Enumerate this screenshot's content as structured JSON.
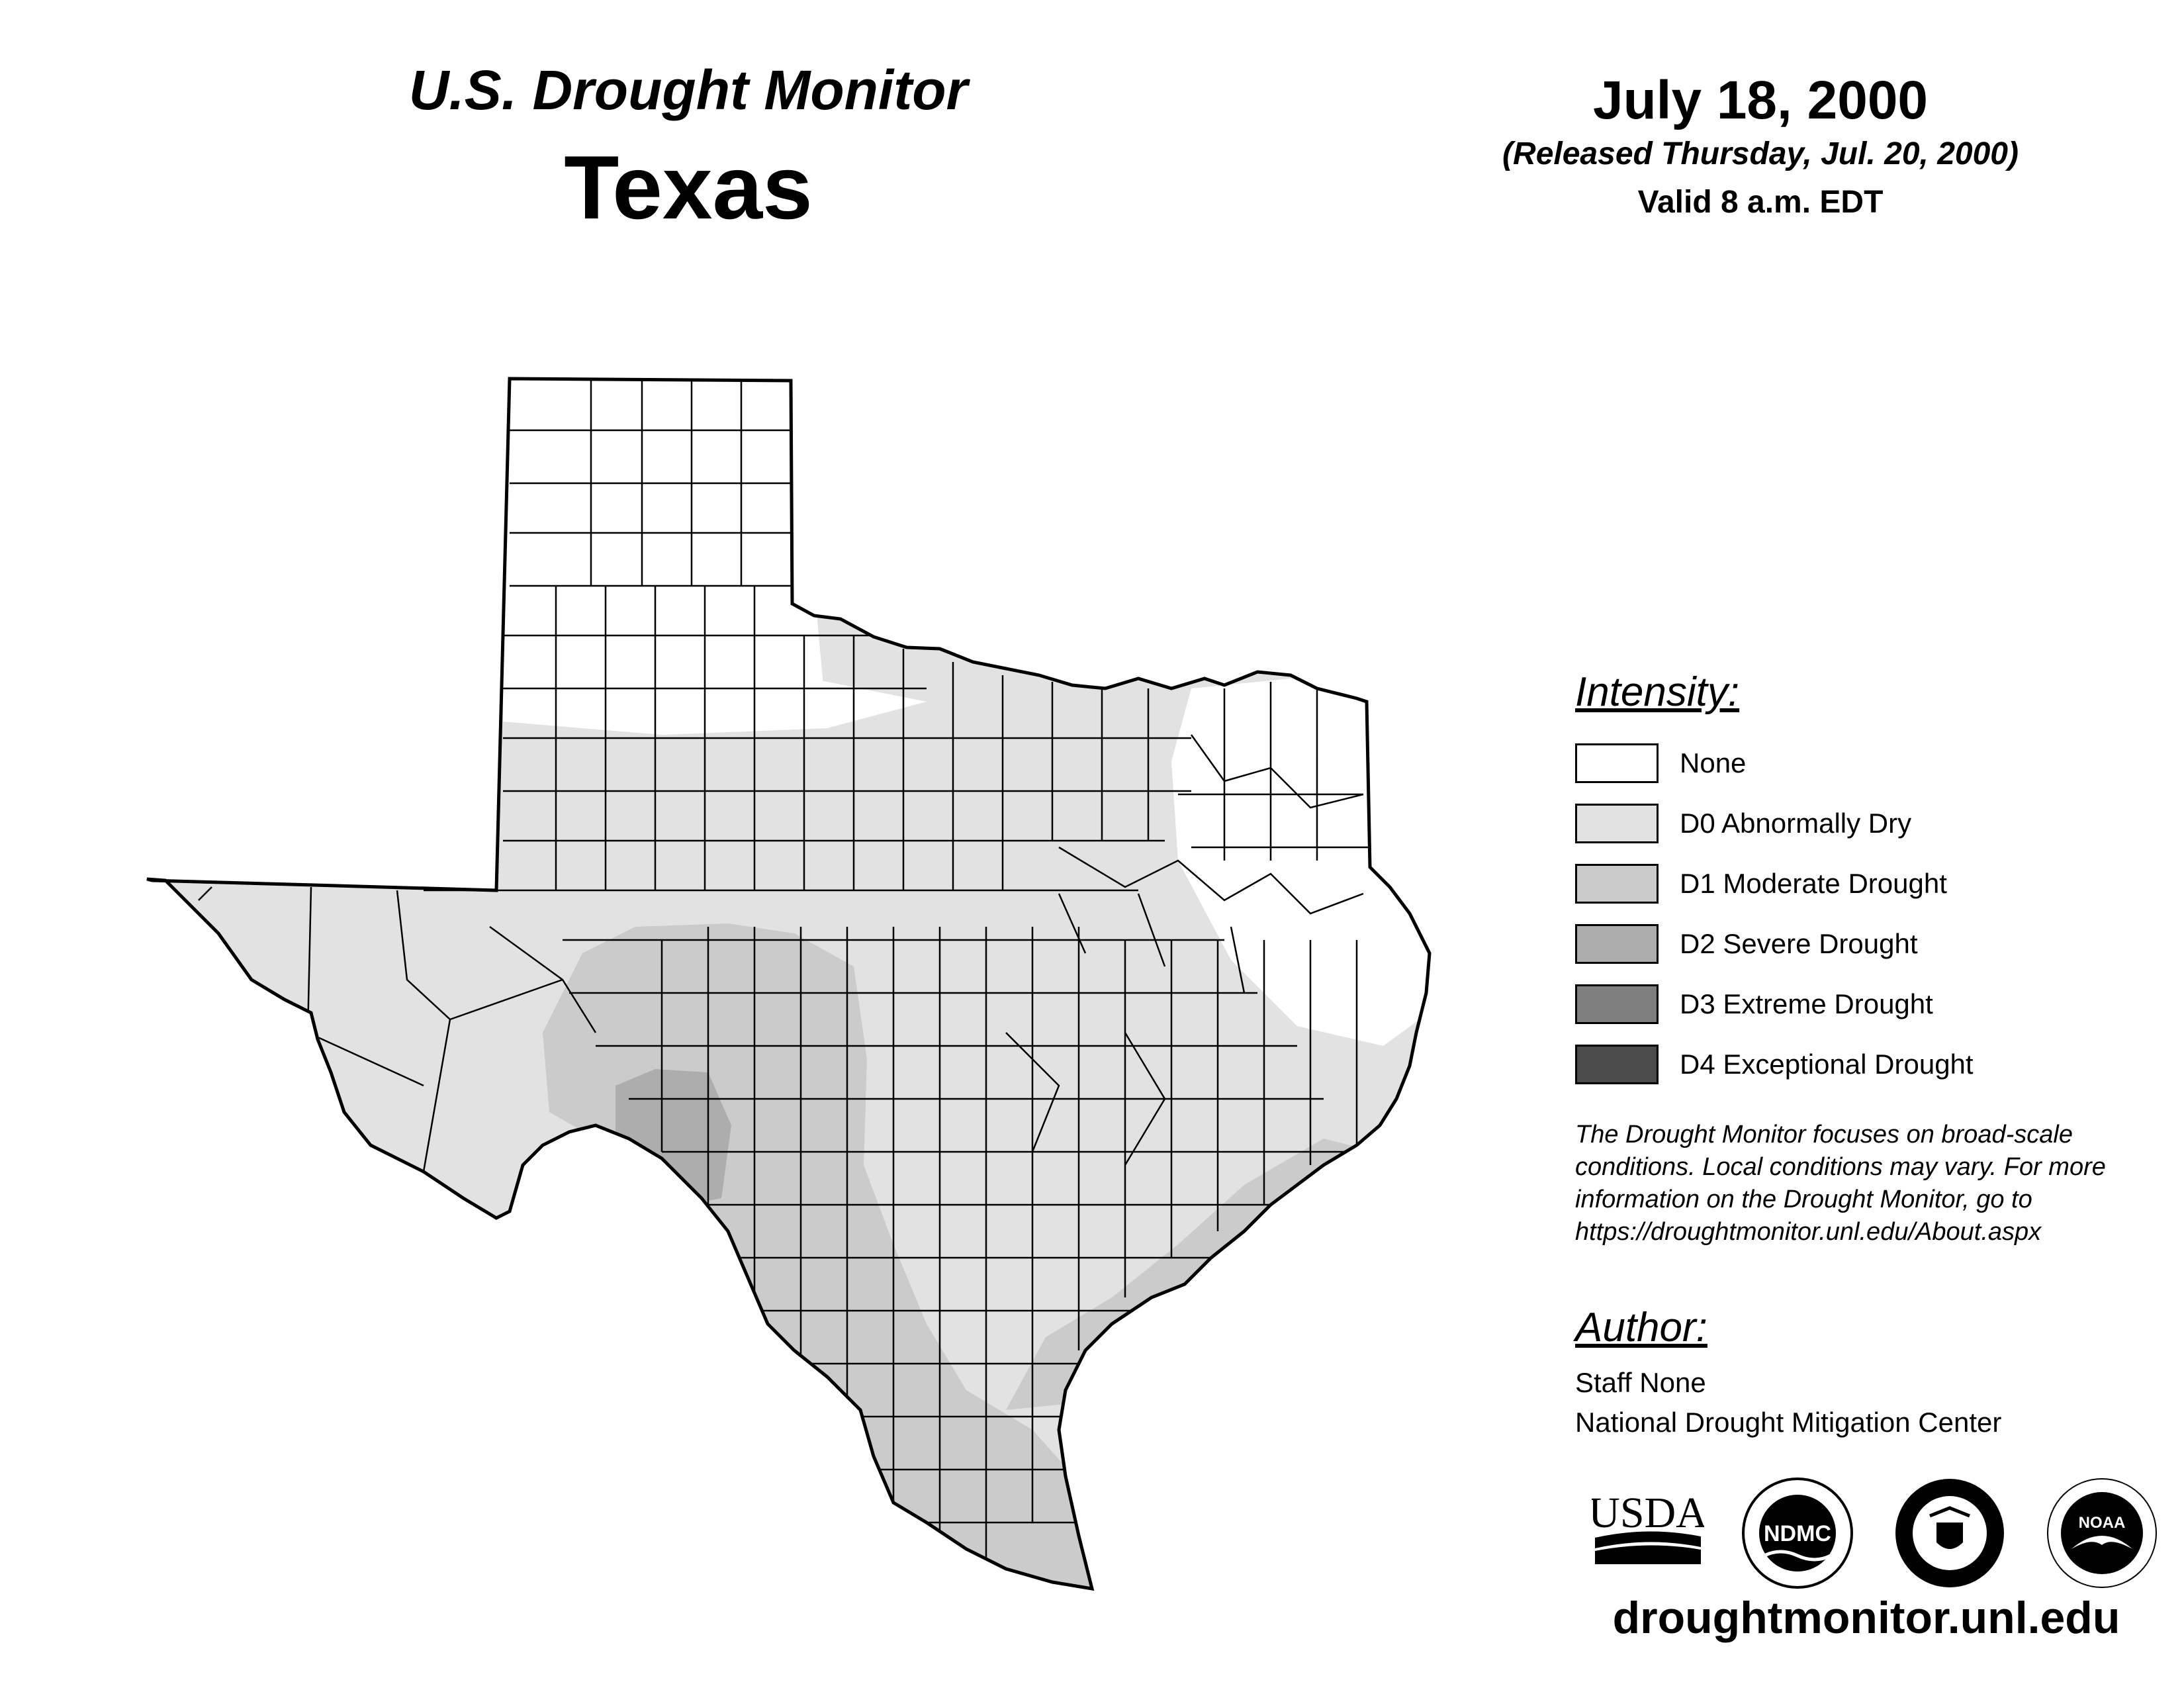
{
  "header": {
    "subtitle": "U.S. Drought Monitor",
    "title": "Texas",
    "date": "July 18, 2000",
    "released": "(Released Thursday, Jul. 20, 2000)",
    "valid": "Valid 8 a.m. EDT"
  },
  "legend": {
    "title": "Intensity:",
    "items": [
      {
        "label": "None",
        "color": "#ffffff"
      },
      {
        "label": "D0 Abnormally Dry",
        "color": "#e2e2e2"
      },
      {
        "label": "D1 Moderate Drought",
        "color": "#cbcbcb"
      },
      {
        "label": "D2 Severe Drought",
        "color": "#adadad"
      },
      {
        "label": "D3 Extreme Drought",
        "color": "#7e7e7e"
      },
      {
        "label": "D4 Exceptional Drought",
        "color": "#4b4b4b"
      }
    ]
  },
  "note": "The Drought Monitor focuses on broad-scale conditions. Local conditions may vary. For more information on the Drought Monitor, go to https://droughtmonitor.unl.edu/About.aspx",
  "author": {
    "title": "Author:",
    "name": "Staff None",
    "org": "National Drought Mitigation Center"
  },
  "logos": {
    "usda": "USDA",
    "ndmc": "NDMC",
    "noaa": "NOAA"
  },
  "url": "droughtmonitor.unl.edu"
}
